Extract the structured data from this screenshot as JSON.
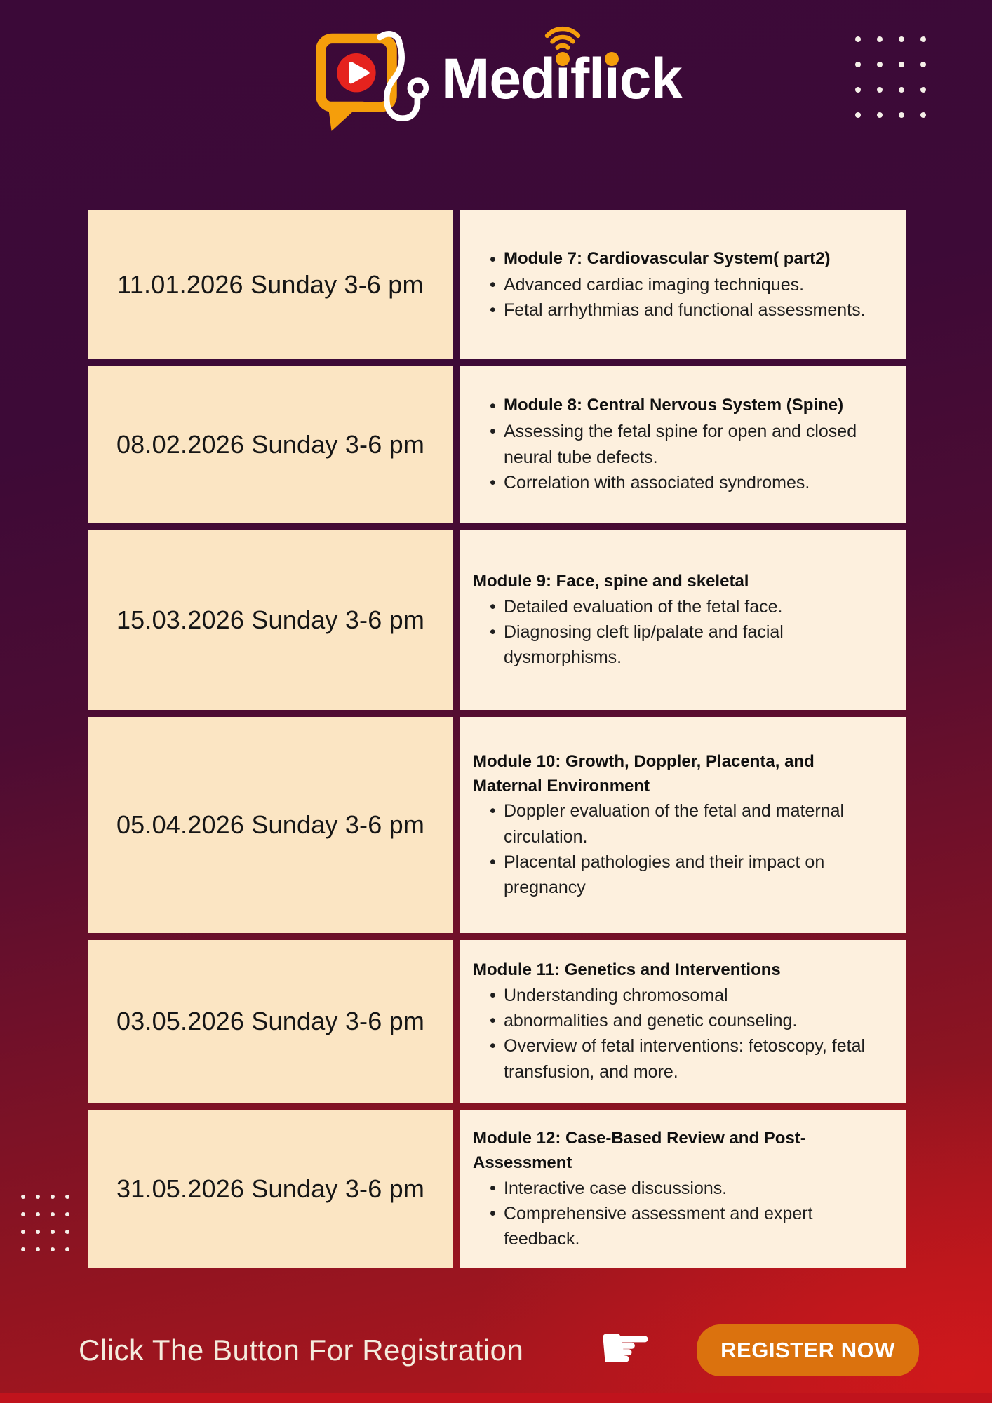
{
  "brand": {
    "name": "Mediflick",
    "parts": [
      "Med",
      "i",
      "fl",
      "i",
      "ck"
    ]
  },
  "decor": {
    "dots_top_right": {
      "rows": 4,
      "cols": 4
    },
    "dots_bottom_left": {
      "rows": 4,
      "cols": 4
    }
  },
  "schedule": {
    "rows": [
      {
        "date": "11.01.2026 Sunday 3-6 pm",
        "items": [
          {
            "text": "Module 7: Cardiovascular System( part2)",
            "bold": true,
            "bullet": true
          },
          {
            "text": "Advanced cardiac imaging techniques.",
            "bullet": true
          },
          {
            "text": "Fetal arrhythmias and functional assessments.",
            "bullet": true
          }
        ]
      },
      {
        "date": "08.02.2026 Sunday 3-6 pm",
        "items": [
          {
            "text": "Module 8:  Central Nervous System (Spine)",
            "bold": true,
            "bullet": true
          },
          {
            "text": "Assessing the fetal spine for open and closed neural tube defects.",
            "bullet": true
          },
          {
            "text": "Correlation with associated syndromes.",
            "bullet": true
          }
        ]
      },
      {
        "date": "15.03.2026 Sunday 3-6 pm",
        "items": [
          {
            "text": "Module 9: Face, spine and skeletal",
            "bold": true,
            "bullet": false
          },
          {
            "text": "Detailed evaluation of the fetal face.",
            "bullet": true
          },
          {
            "text": "Diagnosing cleft lip/palate and facial dysmorphisms.",
            "bullet": true
          }
        ]
      },
      {
        "date": "05.04.2026 Sunday 3-6 pm",
        "items": [
          {
            "text": "Module 10:  Growth, Doppler, Placenta, and Maternal Environment",
            "bold": true,
            "bullet": false
          },
          {
            "text": "Doppler evaluation of the fetal and maternal circulation.",
            "bullet": true
          },
          {
            "text": "Placental pathologies and their impact on pregnancy",
            "bullet": true
          }
        ]
      },
      {
        "date": "03.05.2026 Sunday 3-6 pm",
        "items": [
          {
            "text": "Module 11: Genetics and Interventions",
            "bold": true,
            "bullet": false
          },
          {
            "text": "Understanding chromosomal",
            "bullet": true
          },
          {
            "text": "abnormalities and genetic counseling.",
            "bullet": true
          },
          {
            "text": "Overview of fetal interventions: fetoscopy, fetal transfusion, and more.",
            "bullet": true
          }
        ]
      },
      {
        "date": "31.05.2026 Sunday 3-6 pm",
        "items": [
          {
            "text": "Module 12: Case-Based Review and Post-Assessment",
            "bold": true,
            "bullet": false
          },
          {
            "text": "Interactive case discussions.",
            "bullet": true
          },
          {
            "text": "Comprehensive assessment and expert feedback.",
            "bullet": true
          }
        ]
      }
    ]
  },
  "footer": {
    "cta": "Click The Button For Registration",
    "hand_glyph": "☛",
    "register": "REGISTER NOW"
  },
  "colors": {
    "background_top": "#3B0938",
    "background_bottom": "#B0161D",
    "accent_orange": "#F59E0B",
    "play_red": "#E5231E",
    "button_orange": "#DB720E",
    "cell_date_bg": "#FBE5C3",
    "cell_content_bg": "#FDF0DE",
    "bottom_strip": "#C0131C"
  }
}
